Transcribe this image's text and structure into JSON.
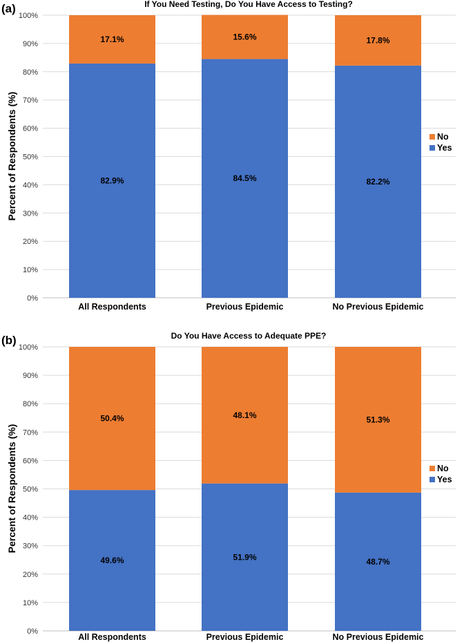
{
  "chart_data": [
    {
      "type": "bar",
      "stacked": true,
      "panel_label": "(a)",
      "title": "If You Need Testing, Do You Have Access to Testing?",
      "xlabel": "",
      "ylabel": "Percent of Respondents (%)",
      "ylim": [
        0,
        100
      ],
      "yticks": [
        "0%",
        "10%",
        "20%",
        "30%",
        "40%",
        "50%",
        "60%",
        "70%",
        "80%",
        "90%",
        "100%"
      ],
      "categories": [
        "All Respondents",
        "Previous Epidemic",
        "No Previous Epidemic"
      ],
      "series": [
        {
          "name": "Yes",
          "color": "#4472c4",
          "values": [
            82.9,
            84.5,
            82.2
          ],
          "labels": [
            "82.9%",
            "84.5%",
            "82.2%"
          ]
        },
        {
          "name": "No",
          "color": "#ed7d31",
          "values": [
            17.1,
            15.6,
            17.8
          ],
          "labels": [
            "17.1%",
            "15.6%",
            "17.8%"
          ]
        }
      ],
      "legend": {
        "position": "right",
        "entries": [
          "No",
          "Yes"
        ]
      },
      "grid": true
    },
    {
      "type": "bar",
      "stacked": true,
      "panel_label": "(b)",
      "title": "Do You Have Access to Adequate PPE?",
      "xlabel": "",
      "ylabel": "Percent of Respondents (%)",
      "ylim": [
        0,
        100
      ],
      "yticks": [
        "0%",
        "10%",
        "20%",
        "30%",
        "40%",
        "50%",
        "60%",
        "70%",
        "80%",
        "90%",
        "100%"
      ],
      "categories": [
        "All Respondents",
        "Previous Epidemic",
        "No Previous Epidemic"
      ],
      "series": [
        {
          "name": "Yes",
          "color": "#4472c4",
          "values": [
            49.6,
            51.9,
            48.7
          ],
          "labels": [
            "49.6%",
            "51.9%",
            "48.7%"
          ]
        },
        {
          "name": "No",
          "color": "#ed7d31",
          "values": [
            50.4,
            48.1,
            51.3
          ],
          "labels": [
            "50.4%",
            "48.1%",
            "51.3%"
          ]
        }
      ],
      "legend": {
        "position": "right",
        "entries": [
          "No",
          "Yes"
        ]
      },
      "grid": true
    }
  ]
}
